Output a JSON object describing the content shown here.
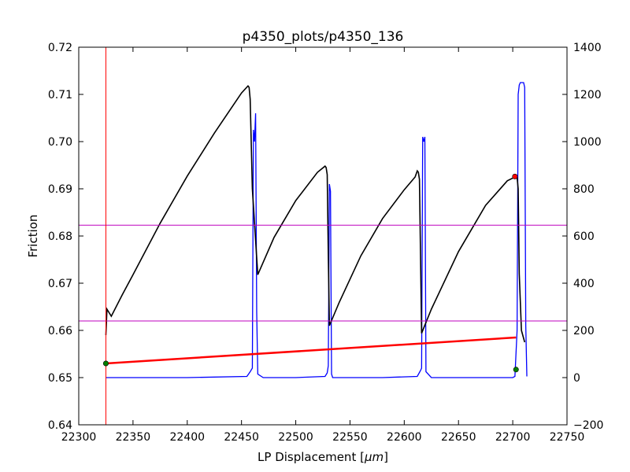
{
  "chart_data": {
    "type": "line",
    "title": "p4350_plots/p4350_136",
    "xlabel": "LP Displacement [",
    "xlabel_unit": "μm",
    "xlabel_close": "]",
    "ylabel": "Friction",
    "y2label": "",
    "xlim": [
      22300,
      22750
    ],
    "ylim": [
      0.64,
      0.72
    ],
    "y2lim": [
      -200,
      1400
    ],
    "x_ticks": [
      22300,
      22350,
      22400,
      22450,
      22500,
      22550,
      22600,
      22650,
      22700,
      22750
    ],
    "y_ticks": [
      0.64,
      0.65,
      0.66,
      0.67,
      0.68,
      0.69,
      0.7,
      0.71,
      0.72
    ],
    "y_tick_labels": [
      "0.64",
      "0.65",
      "0.66",
      "0.67",
      "0.68",
      "0.69",
      "0.70",
      "0.71",
      "0.72"
    ],
    "y2_ticks": [
      -200,
      0,
      200,
      400,
      600,
      800,
      1000,
      1200,
      1400
    ],
    "grid": false,
    "colors": {
      "friction": "#000000",
      "secondary": "#0000ff",
      "fit": "#ff0000",
      "vertical_marker": "#ff0000",
      "horizontal_markers": "#bf00bf",
      "start_point": "#008000",
      "peak_point": "#ff0000"
    },
    "friction_series": {
      "x": [
        22325,
        22326,
        22330,
        22340,
        22350,
        22375,
        22400,
        22425,
        22450,
        22456,
        22457,
        22458,
        22460,
        22465,
        22480,
        22500,
        22520,
        22527,
        22528,
        22529,
        22530,
        22531,
        22540,
        22560,
        22580,
        22600,
        22610,
        22612,
        22613,
        22614,
        22615,
        22616,
        22625,
        22650,
        22675,
        22695,
        22702,
        22704,
        22705,
        22706,
        22708,
        22711
      ],
      "y": [
        0.659,
        0.6645,
        0.663,
        0.6675,
        0.6718,
        0.6827,
        0.6927,
        0.7018,
        0.7103,
        0.7118,
        0.7115,
        0.709,
        0.69,
        0.6718,
        0.6797,
        0.6875,
        0.6935,
        0.6948,
        0.6945,
        0.693,
        0.676,
        0.661,
        0.6659,
        0.6758,
        0.6837,
        0.6898,
        0.6925,
        0.6938,
        0.6935,
        0.692,
        0.676,
        0.6594,
        0.6645,
        0.6767,
        0.6865,
        0.6917,
        0.6925,
        0.6925,
        0.69,
        0.672,
        0.66,
        0.6575
      ]
    },
    "secondary_series": {
      "x": [
        22325,
        22326,
        22350,
        22400,
        22455,
        22458,
        22460,
        22461,
        22462,
        22463,
        22464,
        22465,
        22470,
        22500,
        22527,
        22529,
        22530,
        22531,
        22532,
        22533,
        22534,
        22535,
        22540,
        22580,
        22612,
        22615,
        22616,
        22617,
        22618,
        22619,
        22620,
        22625,
        22660,
        22700,
        22702,
        22704,
        22705,
        22706,
        22707,
        22708,
        22710,
        22711,
        22712,
        22713
      ],
      "y": [
        0,
        0,
        0,
        0,
        5,
        25,
        40,
        1050,
        1000,
        1120,
        280,
        15,
        0,
        0,
        5,
        20,
        50,
        820,
        790,
        15,
        0,
        0,
        0,
        0,
        5,
        30,
        40,
        1020,
        1000,
        1020,
        25,
        0,
        0,
        0,
        5,
        200,
        1200,
        1240,
        1250,
        1250,
        1250,
        1230,
        220,
        5
      ]
    },
    "fit_line": {
      "x": [
        22325,
        22703
      ],
      "y": [
        0.653,
        0.6585
      ]
    },
    "vertical_marker_x": 22325,
    "horizontal_markers_y": [
      0.6823,
      0.662
    ],
    "start_point": {
      "x": 22325,
      "y": 0.653
    },
    "peak_point": {
      "x": 22702,
      "y": 0.6926
    },
    "end_point": {
      "x": 22703,
      "y": 0.6517
    }
  }
}
